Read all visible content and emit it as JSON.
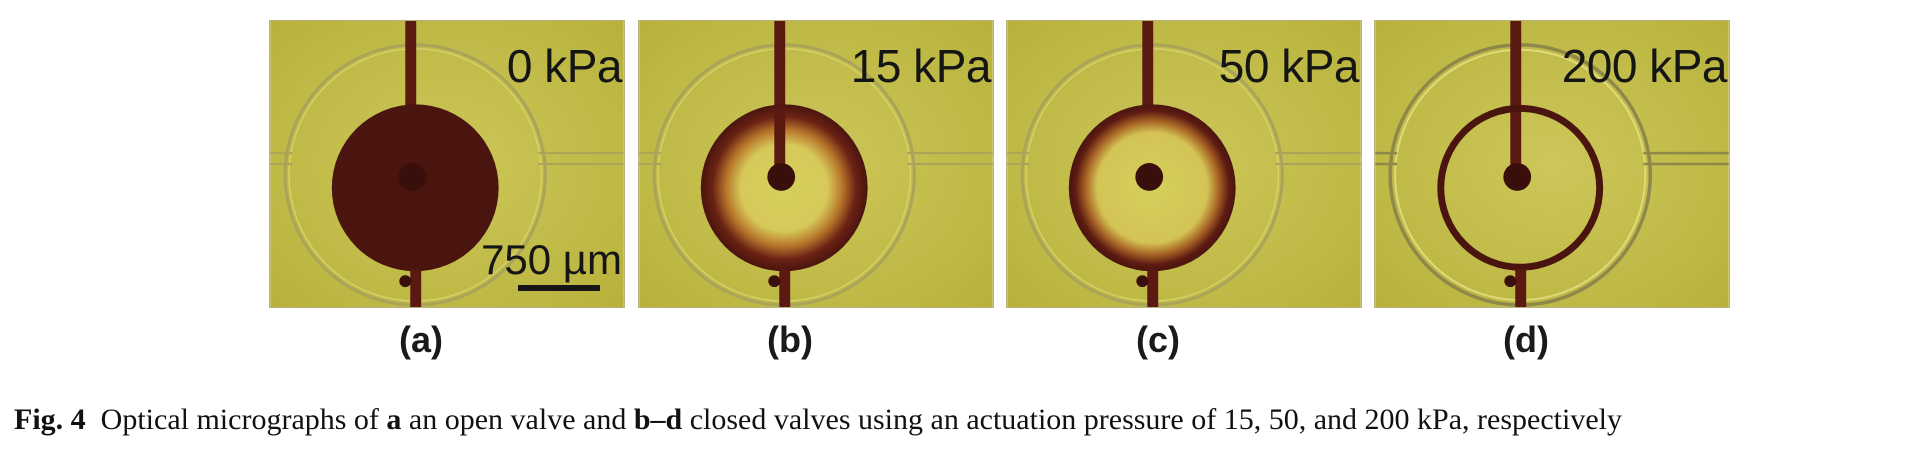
{
  "figure": {
    "panels": [
      {
        "id": "a",
        "letter": "(a)",
        "pressure": "0 kPa",
        "scale_bar": "750 µm"
      },
      {
        "id": "b",
        "letter": "(b)",
        "pressure": "15 kPa"
      },
      {
        "id": "c",
        "letter": "(c)",
        "pressure": "50 kPa"
      },
      {
        "id": "d",
        "letter": "(d)",
        "pressure": "200 kPa"
      }
    ],
    "caption": {
      "label": "Fig. 4",
      "text_1": "Optical micrographs of ",
      "bold_a": "a",
      "text_2": " an open valve and ",
      "bold_bd": "b–d",
      "text_3": " closed valves using an actuation pressure of 15, 50, and 200 kPa, respectively"
    }
  },
  "colors": {
    "background_yellow": "#c2bc47",
    "dye": "#4a140f",
    "channel_outline": "#a9a45a"
  }
}
